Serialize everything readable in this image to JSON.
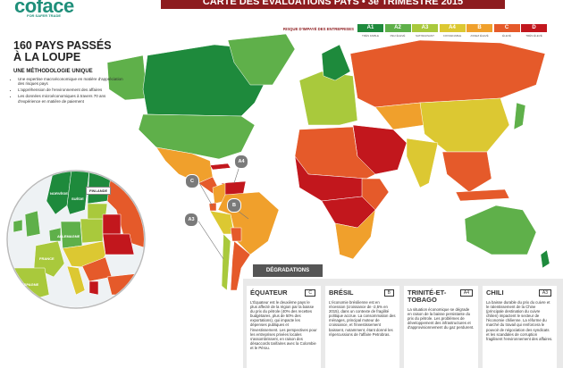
{
  "header": {
    "logo": "coface",
    "tagline": "FOR SAFER TRADE",
    "title": "CARTE DES ÉVALUATIONS PAYS • 3e TRIMESTRE 2015"
  },
  "legend": {
    "title": "RISQUE D'IMPAYÉ DES ENTREPRISES",
    "items": [
      {
        "code": "A1",
        "label": "TRÈS FAIBLE",
        "color": "#1e8a3c"
      },
      {
        "code": "A2",
        "label": "PEU ÉLEVÉ",
        "color": "#5fb04a"
      },
      {
        "code": "A3",
        "label": "SATISFAISANT",
        "color": "#a9c93c"
      },
      {
        "code": "A4",
        "label": "CONVENABLE",
        "color": "#dcc832"
      },
      {
        "code": "B",
        "label": "ASSEZ ÉLEVÉ",
        "color": "#f0a02c"
      },
      {
        "code": "C",
        "label": "ÉLEVÉ",
        "color": "#e55a2a"
      },
      {
        "code": "D",
        "label": "TRÈS ÉLEVÉ",
        "color": "#c2171d"
      }
    ]
  },
  "intro": {
    "title": "160 PAYS PASSÉS À LA LOUPE",
    "subtitle": "UNE MÉTHODOLOGIE UNIQUE",
    "bullets": [
      "Une expertise macroéconomique en matière d'appréciation des risques pays",
      "L'appréhension de l'environnement des affaires",
      "Les données microéconomiques à travers 70 ans d'expérience en matière de paiement"
    ]
  },
  "map": {
    "labels": [
      "NORVÈGE",
      "SUÈDE",
      "FINLANDE",
      "ALLEMAGNE",
      "FRANCE",
      "ESPAGNE"
    ],
    "callouts": [
      "C",
      "A4",
      "B",
      "A3"
    ]
  },
  "degradations": {
    "title": "DÉGRADATIONS",
    "items": [
      {
        "country": "ÉQUATEUR",
        "rating": "C",
        "text": "L'Équateur est le deuxième pays le plus affecté de la région par la baisse du prix du pétrole (40% des recettes budgétaires, plus de 50% des exportations), qui impacte les dépenses publiques et l'investissement. Les perspectives pour les entreprises privées locales s'assombrissent, en raison des désaccords tarifaires avec la Colombie et le Pérou."
      },
      {
        "country": "BRÉSIL",
        "rating": "B",
        "text": "L'économie brésilienne est en récession (croissance de -2,5% en 2015), dans un contexte de fragilité politique accrue. La consommation des ménages, principal moteur de croissance, et l'investissement baissent, notamment, étant donné les répercussions de l'affaire Petrobras."
      },
      {
        "country": "TRINITÉ-ET-TOBAGO",
        "rating": "A4",
        "text": "La situation économique se dégrade en raison de la baisse persistante du prix du pétrole. Les problèmes de développement des infrastructures et d'approvisionnement du gaz perdurent."
      },
      {
        "country": "CHILI",
        "rating": "A3",
        "text": "La baisse durable du prix du cuivre et le ralentissement de la Chine (principale destination du cuivre chilien) impactent le secteur de l'économie chilienne. La réforme du marché du travail qui renforcera le pouvoir de négociation des syndicats et les scandales de corruption fragilisent l'environnement des affaires."
      }
    ]
  }
}
